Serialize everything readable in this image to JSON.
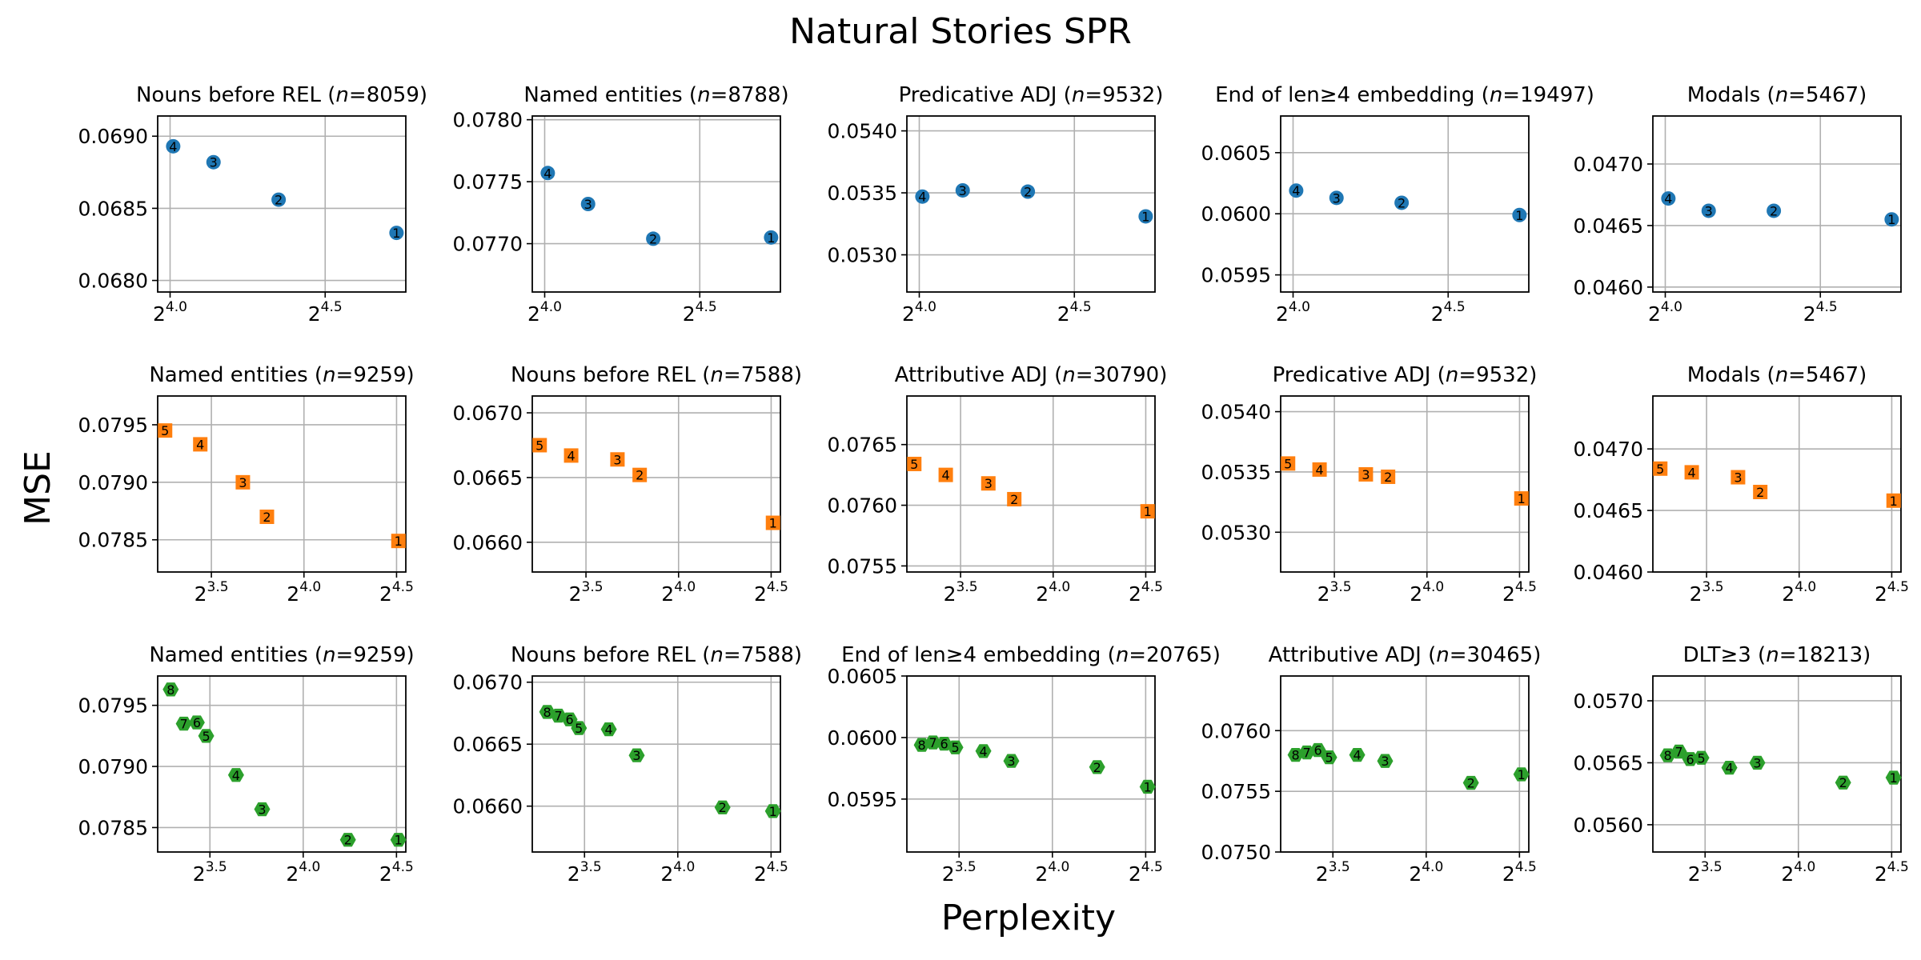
{
  "figure": {
    "title": "Natural Stories SPR",
    "ylabel": "MSE",
    "xlabel": "Perplexity"
  },
  "rows": [
    {
      "series_color": "#1f77b4",
      "marker": "circle",
      "x_ticks": [
        {
          "value": 4.0,
          "base": "2",
          "exp": "4.0"
        },
        {
          "value": 4.5,
          "base": "2",
          "exp": "4.5"
        }
      ],
      "xlim": [
        3.96,
        4.76
      ]
    },
    {
      "series_color": "#ff7f0e",
      "marker": "square",
      "x_ticks": [
        {
          "value": 3.5,
          "base": "2",
          "exp": "3.5"
        },
        {
          "value": 4.0,
          "base": "2",
          "exp": "4.0"
        },
        {
          "value": 4.5,
          "base": "2",
          "exp": "4.5"
        }
      ],
      "xlim": [
        3.21,
        4.55
      ]
    },
    {
      "series_color": "#2ca02c",
      "marker": "hexagon",
      "x_ticks": [
        {
          "value": 3.5,
          "base": "2",
          "exp": "3.5"
        },
        {
          "value": 4.0,
          "base": "2",
          "exp": "4.0"
        },
        {
          "value": 4.5,
          "base": "2",
          "exp": "4.5"
        }
      ],
      "xlim": [
        3.22,
        4.55
      ]
    }
  ],
  "chart_data": [
    {
      "type": "scatter",
      "row": 0,
      "col": 0,
      "title_pre": "Nouns before REL (",
      "title_n": "n",
      "title_post": "=8059)",
      "ylim": [
        0.06792,
        0.06914
      ],
      "y_ticks": [
        "0.0680",
        "0.0685",
        "0.0690"
      ],
      "y_tick_values": [
        0.068,
        0.0685,
        0.069
      ],
      "points": [
        {
          "x": 4.01,
          "y": 0.06893,
          "label": "4"
        },
        {
          "x": 4.14,
          "y": 0.06882,
          "label": "3"
        },
        {
          "x": 4.35,
          "y": 0.06856,
          "label": "2"
        },
        {
          "x": 4.73,
          "y": 0.06833,
          "label": "1"
        }
      ]
    },
    {
      "type": "scatter",
      "row": 0,
      "col": 1,
      "title_pre": "Named entities (",
      "title_n": "n",
      "title_post": "=8788)",
      "ylim": [
        0.07661,
        0.07803
      ],
      "y_ticks": [
        "0.0770",
        "0.0775",
        "0.0780"
      ],
      "y_tick_values": [
        0.077,
        0.0775,
        0.078
      ],
      "points": [
        {
          "x": 4.01,
          "y": 0.07757,
          "label": "4"
        },
        {
          "x": 4.14,
          "y": 0.07732,
          "label": "3"
        },
        {
          "x": 4.35,
          "y": 0.07704,
          "label": "2"
        },
        {
          "x": 4.73,
          "y": 0.07705,
          "label": "1"
        }
      ]
    },
    {
      "type": "scatter",
      "row": 0,
      "col": 2,
      "title_pre": "Predicative ADJ (",
      "title_n": "n",
      "title_post": "=9532)",
      "ylim": [
        0.0527,
        0.05412
      ],
      "y_ticks": [
        "0.0530",
        "0.0535",
        "0.0540"
      ],
      "y_tick_values": [
        0.053,
        0.0535,
        0.054
      ],
      "points": [
        {
          "x": 4.01,
          "y": 0.05347,
          "label": "4"
        },
        {
          "x": 4.14,
          "y": 0.05352,
          "label": "3"
        },
        {
          "x": 4.35,
          "y": 0.05351,
          "label": "2"
        },
        {
          "x": 4.73,
          "y": 0.05331,
          "label": "1"
        }
      ]
    },
    {
      "type": "scatter",
      "row": 0,
      "col": 3,
      "title_pre": "End of len≥4 embedding (",
      "title_n": "n",
      "title_post": "=19497)",
      "ylim": [
        0.05936,
        0.0608
      ],
      "y_ticks": [
        "0.0595",
        "0.0600",
        "0.0605"
      ],
      "y_tick_values": [
        0.0595,
        0.06,
        0.0605
      ],
      "points": [
        {
          "x": 4.01,
          "y": 0.06019,
          "label": "4"
        },
        {
          "x": 4.14,
          "y": 0.06013,
          "label": "3"
        },
        {
          "x": 4.35,
          "y": 0.06009,
          "label": "2"
        },
        {
          "x": 4.73,
          "y": 0.05999,
          "label": "1"
        }
      ]
    },
    {
      "type": "scatter",
      "row": 0,
      "col": 4,
      "title_pre": "Modals (",
      "title_n": "n",
      "title_post": "=5467)",
      "ylim": [
        0.04596,
        0.04739
      ],
      "y_ticks": [
        "0.0460",
        "0.0465",
        "0.0470"
      ],
      "y_tick_values": [
        0.046,
        0.0465,
        0.047
      ],
      "points": [
        {
          "x": 4.01,
          "y": 0.04672,
          "label": "4"
        },
        {
          "x": 4.14,
          "y": 0.04662,
          "label": "3"
        },
        {
          "x": 4.35,
          "y": 0.04662,
          "label": "2"
        },
        {
          "x": 4.73,
          "y": 0.04655,
          "label": "1"
        }
      ]
    },
    {
      "type": "scatter",
      "row": 1,
      "col": 0,
      "title_pre": "Named entities (",
      "title_n": "n",
      "title_post": "=9259)",
      "ylim": [
        0.07822,
        0.07975
      ],
      "y_ticks": [
        "0.0785",
        "0.0790",
        "0.0795"
      ],
      "y_tick_values": [
        0.0785,
        0.079,
        0.0795
      ],
      "points": [
        {
          "x": 3.25,
          "y": 0.07945,
          "label": "5"
        },
        {
          "x": 3.44,
          "y": 0.07933,
          "label": "4"
        },
        {
          "x": 3.67,
          "y": 0.079,
          "label": "3"
        },
        {
          "x": 3.8,
          "y": 0.0787,
          "label": "2"
        },
        {
          "x": 4.51,
          "y": 0.07849,
          "label": "1"
        }
      ]
    },
    {
      "type": "scatter",
      "row": 1,
      "col": 1,
      "title_pre": "Nouns before REL (",
      "title_n": "n",
      "title_post": "=7588)",
      "ylim": [
        0.06577,
        0.06713
      ],
      "y_ticks": [
        "0.0660",
        "0.0665",
        "0.0670"
      ],
      "y_tick_values": [
        0.066,
        0.0665,
        0.067
      ],
      "points": [
        {
          "x": 3.25,
          "y": 0.06675,
          "label": "5"
        },
        {
          "x": 3.42,
          "y": 0.06667,
          "label": "4"
        },
        {
          "x": 3.67,
          "y": 0.06664,
          "label": "3"
        },
        {
          "x": 3.79,
          "y": 0.06652,
          "label": "2"
        },
        {
          "x": 4.51,
          "y": 0.06615,
          "label": "1"
        }
      ]
    },
    {
      "type": "scatter",
      "row": 1,
      "col": 2,
      "title_pre": "Attributive ADJ (",
      "title_n": "n",
      "title_post": "=30790)",
      "ylim": [
        0.07545,
        0.0769
      ],
      "y_ticks": [
        "0.0755",
        "0.0760",
        "0.0765"
      ],
      "y_tick_values": [
        0.0755,
        0.076,
        0.0765
      ],
      "points": [
        {
          "x": 3.25,
          "y": 0.07634,
          "label": "5"
        },
        {
          "x": 3.42,
          "y": 0.07625,
          "label": "4"
        },
        {
          "x": 3.65,
          "y": 0.07618,
          "label": "3"
        },
        {
          "x": 3.79,
          "y": 0.07605,
          "label": "2"
        },
        {
          "x": 4.51,
          "y": 0.07595,
          "label": "1"
        }
      ]
    },
    {
      "type": "scatter",
      "row": 1,
      "col": 3,
      "title_pre": "Predicative ADJ (",
      "title_n": "n",
      "title_post": "=9532)",
      "ylim": [
        0.05267,
        0.05413
      ],
      "y_ticks": [
        "0.0530",
        "0.0535",
        "0.0540"
      ],
      "y_tick_values": [
        0.053,
        0.0535,
        0.054
      ],
      "points": [
        {
          "x": 3.25,
          "y": 0.05357,
          "label": "5"
        },
        {
          "x": 3.42,
          "y": 0.05352,
          "label": "4"
        },
        {
          "x": 3.67,
          "y": 0.05348,
          "label": "3"
        },
        {
          "x": 3.79,
          "y": 0.05346,
          "label": "2"
        },
        {
          "x": 4.51,
          "y": 0.05328,
          "label": "1"
        }
      ]
    },
    {
      "type": "scatter",
      "row": 1,
      "col": 4,
      "title_pre": "Modals (",
      "title_n": "n",
      "title_post": "=5467)",
      "ylim": [
        0.046,
        0.04743
      ],
      "y_ticks": [
        "0.0460",
        "0.0465",
        "0.0470"
      ],
      "y_tick_values": [
        0.046,
        0.0465,
        0.047
      ],
      "points": [
        {
          "x": 3.25,
          "y": 0.04684,
          "label": "5"
        },
        {
          "x": 3.42,
          "y": 0.04681,
          "label": "4"
        },
        {
          "x": 3.67,
          "y": 0.04677,
          "label": "3"
        },
        {
          "x": 3.79,
          "y": 0.04665,
          "label": "2"
        },
        {
          "x": 4.51,
          "y": 0.04658,
          "label": "1"
        }
      ]
    },
    {
      "type": "scatter",
      "row": 2,
      "col": 0,
      "title_pre": "Named entities (",
      "title_n": "n",
      "title_post": "=9259)",
      "ylim": [
        0.0783,
        0.07974
      ],
      "y_ticks": [
        "0.0785",
        "0.0790",
        "0.0795"
      ],
      "y_tick_values": [
        0.0785,
        0.079,
        0.0795
      ],
      "points": [
        {
          "x": 3.29,
          "y": 0.07963,
          "label": "8"
        },
        {
          "x": 3.36,
          "y": 0.07935,
          "label": "7"
        },
        {
          "x": 3.43,
          "y": 0.07936,
          "label": "6"
        },
        {
          "x": 3.48,
          "y": 0.07925,
          "label": "5"
        },
        {
          "x": 3.64,
          "y": 0.07893,
          "label": "4"
        },
        {
          "x": 3.78,
          "y": 0.07865,
          "label": "3"
        },
        {
          "x": 4.24,
          "y": 0.0784,
          "label": "2"
        },
        {
          "x": 4.51,
          "y": 0.0784,
          "label": "1"
        }
      ]
    },
    {
      "type": "scatter",
      "row": 2,
      "col": 1,
      "title_pre": "Nouns before REL (",
      "title_n": "n",
      "title_post": "=7588)",
      "ylim": [
        0.06563,
        0.06705
      ],
      "y_ticks": [
        "0.0660",
        "0.0665",
        "0.0670"
      ],
      "y_tick_values": [
        0.066,
        0.0665,
        0.067
      ],
      "points": [
        {
          "x": 3.3,
          "y": 0.06676,
          "label": "8"
        },
        {
          "x": 3.36,
          "y": 0.06673,
          "label": "7"
        },
        {
          "x": 3.42,
          "y": 0.0667,
          "label": "6"
        },
        {
          "x": 3.47,
          "y": 0.06663,
          "label": "5"
        },
        {
          "x": 3.63,
          "y": 0.06662,
          "label": "4"
        },
        {
          "x": 3.78,
          "y": 0.06641,
          "label": "3"
        },
        {
          "x": 4.24,
          "y": 0.06599,
          "label": "2"
        },
        {
          "x": 4.51,
          "y": 0.06596,
          "label": "1"
        }
      ]
    },
    {
      "type": "scatter",
      "row": 2,
      "col": 2,
      "title_pre": "End of len≥4 embedding (",
      "title_n": "n",
      "title_post": "=20765)",
      "ylim": [
        0.05907,
        0.0605
      ],
      "y_ticks": [
        "0.0595",
        "0.0600",
        "0.0605"
      ],
      "y_tick_values": [
        0.0595,
        0.06,
        0.0605
      ],
      "points": [
        {
          "x": 3.3,
          "y": 0.05994,
          "label": "8"
        },
        {
          "x": 3.36,
          "y": 0.05996,
          "label": "7"
        },
        {
          "x": 3.42,
          "y": 0.05995,
          "label": "6"
        },
        {
          "x": 3.48,
          "y": 0.05992,
          "label": "5"
        },
        {
          "x": 3.63,
          "y": 0.05989,
          "label": "4"
        },
        {
          "x": 3.78,
          "y": 0.05981,
          "label": "3"
        },
        {
          "x": 4.24,
          "y": 0.05976,
          "label": "2"
        },
        {
          "x": 4.51,
          "y": 0.0596,
          "label": "1"
        }
      ]
    },
    {
      "type": "scatter",
      "row": 2,
      "col": 3,
      "title_pre": "Attributive ADJ (",
      "title_n": "n",
      "title_post": "=30465)",
      "ylim": [
        0.075,
        0.07645
      ],
      "y_ticks": [
        "0.0750",
        "0.0755",
        "0.0760"
      ],
      "y_tick_values": [
        0.075,
        0.0755,
        0.076
      ],
      "points": [
        {
          "x": 3.3,
          "y": 0.0758,
          "label": "8"
        },
        {
          "x": 3.36,
          "y": 0.07582,
          "label": "7"
        },
        {
          "x": 3.42,
          "y": 0.07584,
          "label": "6"
        },
        {
          "x": 3.48,
          "y": 0.07578,
          "label": "5"
        },
        {
          "x": 3.63,
          "y": 0.0758,
          "label": "4"
        },
        {
          "x": 3.78,
          "y": 0.07575,
          "label": "3"
        },
        {
          "x": 4.24,
          "y": 0.07557,
          "label": "2"
        },
        {
          "x": 4.51,
          "y": 0.07564,
          "label": "1"
        }
      ]
    },
    {
      "type": "scatter",
      "row": 2,
      "col": 4,
      "title_pre": "DLT≥3 (",
      "title_n": "n",
      "title_post": "=18213)",
      "ylim": [
        0.05578,
        0.0572
      ],
      "y_ticks": [
        "0.0560",
        "0.0565",
        "0.0570"
      ],
      "y_tick_values": [
        0.056,
        0.0565,
        0.057
      ],
      "points": [
        {
          "x": 3.3,
          "y": 0.05656,
          "label": "8"
        },
        {
          "x": 3.36,
          "y": 0.05659,
          "label": "7"
        },
        {
          "x": 3.42,
          "y": 0.05653,
          "label": "6"
        },
        {
          "x": 3.48,
          "y": 0.05654,
          "label": "5"
        },
        {
          "x": 3.63,
          "y": 0.05646,
          "label": "4"
        },
        {
          "x": 3.78,
          "y": 0.0565,
          "label": "3"
        },
        {
          "x": 4.24,
          "y": 0.05634,
          "label": "2"
        },
        {
          "x": 4.51,
          "y": 0.05638,
          "label": "1"
        }
      ]
    }
  ]
}
